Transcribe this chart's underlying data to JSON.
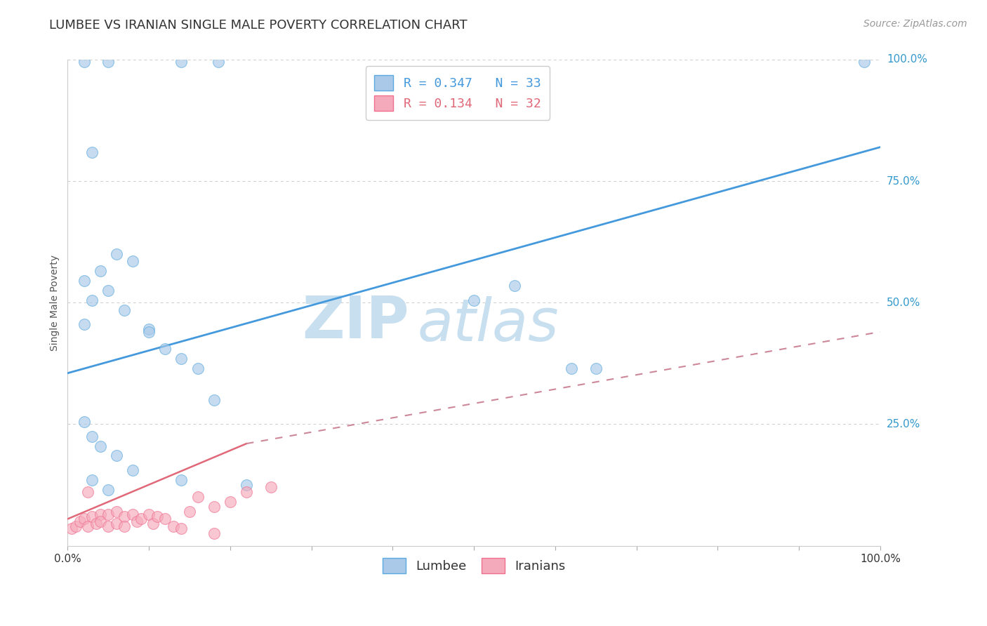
{
  "title": "LUMBEE VS IRANIAN SINGLE MALE POVERTY CORRELATION CHART",
  "source_text": "Source: ZipAtlas.com",
  "ylabel": "Single Male Poverty",
  "watermark_zip": "ZIP",
  "watermark_atlas": "atlas",
  "xlim": [
    0,
    1
  ],
  "ylim": [
    0,
    1
  ],
  "x_tick_labels_left": "0.0%",
  "x_tick_labels_right": "100.0%",
  "y_tick_labels_right": [
    "25.0%",
    "50.0%",
    "75.0%",
    "100.0%"
  ],
  "y_tick_vals_right": [
    0.25,
    0.5,
    0.75,
    1.0
  ],
  "legend_lumbee": "R = 0.347   N = 33",
  "legend_iranians": "R = 0.134   N = 32",
  "lumbee_color": "#aac9e8",
  "iranian_color": "#f5aabb",
  "lumbee_edge_color": "#5aaae0",
  "iranian_edge_color": "#f07090",
  "lumbee_line_color": "#4499dd",
  "iranian_line_color": "#e06878",
  "iranian_dash_color": "#cc8899",
  "lumbee_scatter_x": [
    0.02,
    0.05,
    0.14,
    0.185,
    0.02,
    0.04,
    0.06,
    0.08,
    0.02,
    0.03,
    0.05,
    0.07,
    0.1,
    0.12,
    0.14,
    0.18,
    0.02,
    0.03,
    0.04,
    0.06,
    0.08,
    0.03,
    0.05,
    0.14,
    0.22,
    0.5,
    0.55,
    0.62,
    0.65,
    0.98,
    0.03,
    0.1,
    0.16
  ],
  "lumbee_scatter_y": [
    0.995,
    0.995,
    0.995,
    0.995,
    0.545,
    0.565,
    0.6,
    0.585,
    0.455,
    0.505,
    0.525,
    0.485,
    0.445,
    0.405,
    0.385,
    0.3,
    0.255,
    0.225,
    0.205,
    0.185,
    0.155,
    0.135,
    0.115,
    0.135,
    0.125,
    0.505,
    0.535,
    0.365,
    0.365,
    0.995,
    0.81,
    0.44,
    0.365
  ],
  "iranian_scatter_x": [
    0.005,
    0.01,
    0.015,
    0.02,
    0.025,
    0.03,
    0.035,
    0.04,
    0.04,
    0.05,
    0.05,
    0.06,
    0.06,
    0.07,
    0.07,
    0.08,
    0.085,
    0.09,
    0.1,
    0.105,
    0.11,
    0.12,
    0.13,
    0.14,
    0.15,
    0.16,
    0.18,
    0.2,
    0.22,
    0.25,
    0.18,
    0.025
  ],
  "iranian_scatter_y": [
    0.035,
    0.04,
    0.05,
    0.055,
    0.04,
    0.06,
    0.045,
    0.065,
    0.05,
    0.065,
    0.04,
    0.07,
    0.045,
    0.06,
    0.04,
    0.065,
    0.05,
    0.055,
    0.065,
    0.045,
    0.06,
    0.055,
    0.04,
    0.035,
    0.07,
    0.1,
    0.08,
    0.09,
    0.11,
    0.12,
    0.025,
    0.11
  ],
  "lumbee_trend_x": [
    0.0,
    1.0
  ],
  "lumbee_trend_y": [
    0.355,
    0.82
  ],
  "iranian_solid_trend_x": [
    0.0,
    0.22
  ],
  "iranian_solid_trend_y": [
    0.055,
    0.21
  ],
  "iranian_dash_trend_x": [
    0.22,
    1.0
  ],
  "iranian_dash_trend_y": [
    0.21,
    0.44
  ],
  "grid_color": "#cccccc",
  "background_color": "#ffffff",
  "title_color": "#333333",
  "title_fontsize": 13,
  "axis_label_fontsize": 10,
  "tick_fontsize": 11,
  "legend_fontsize": 13,
  "source_fontsize": 10,
  "watermark_fontsize_zip": 60,
  "watermark_fontsize_atlas": 60,
  "watermark_color": "#c8dff0",
  "scatter_size": 130,
  "scatter_alpha": 0.65,
  "right_axis_label_color": "#3399cc"
}
